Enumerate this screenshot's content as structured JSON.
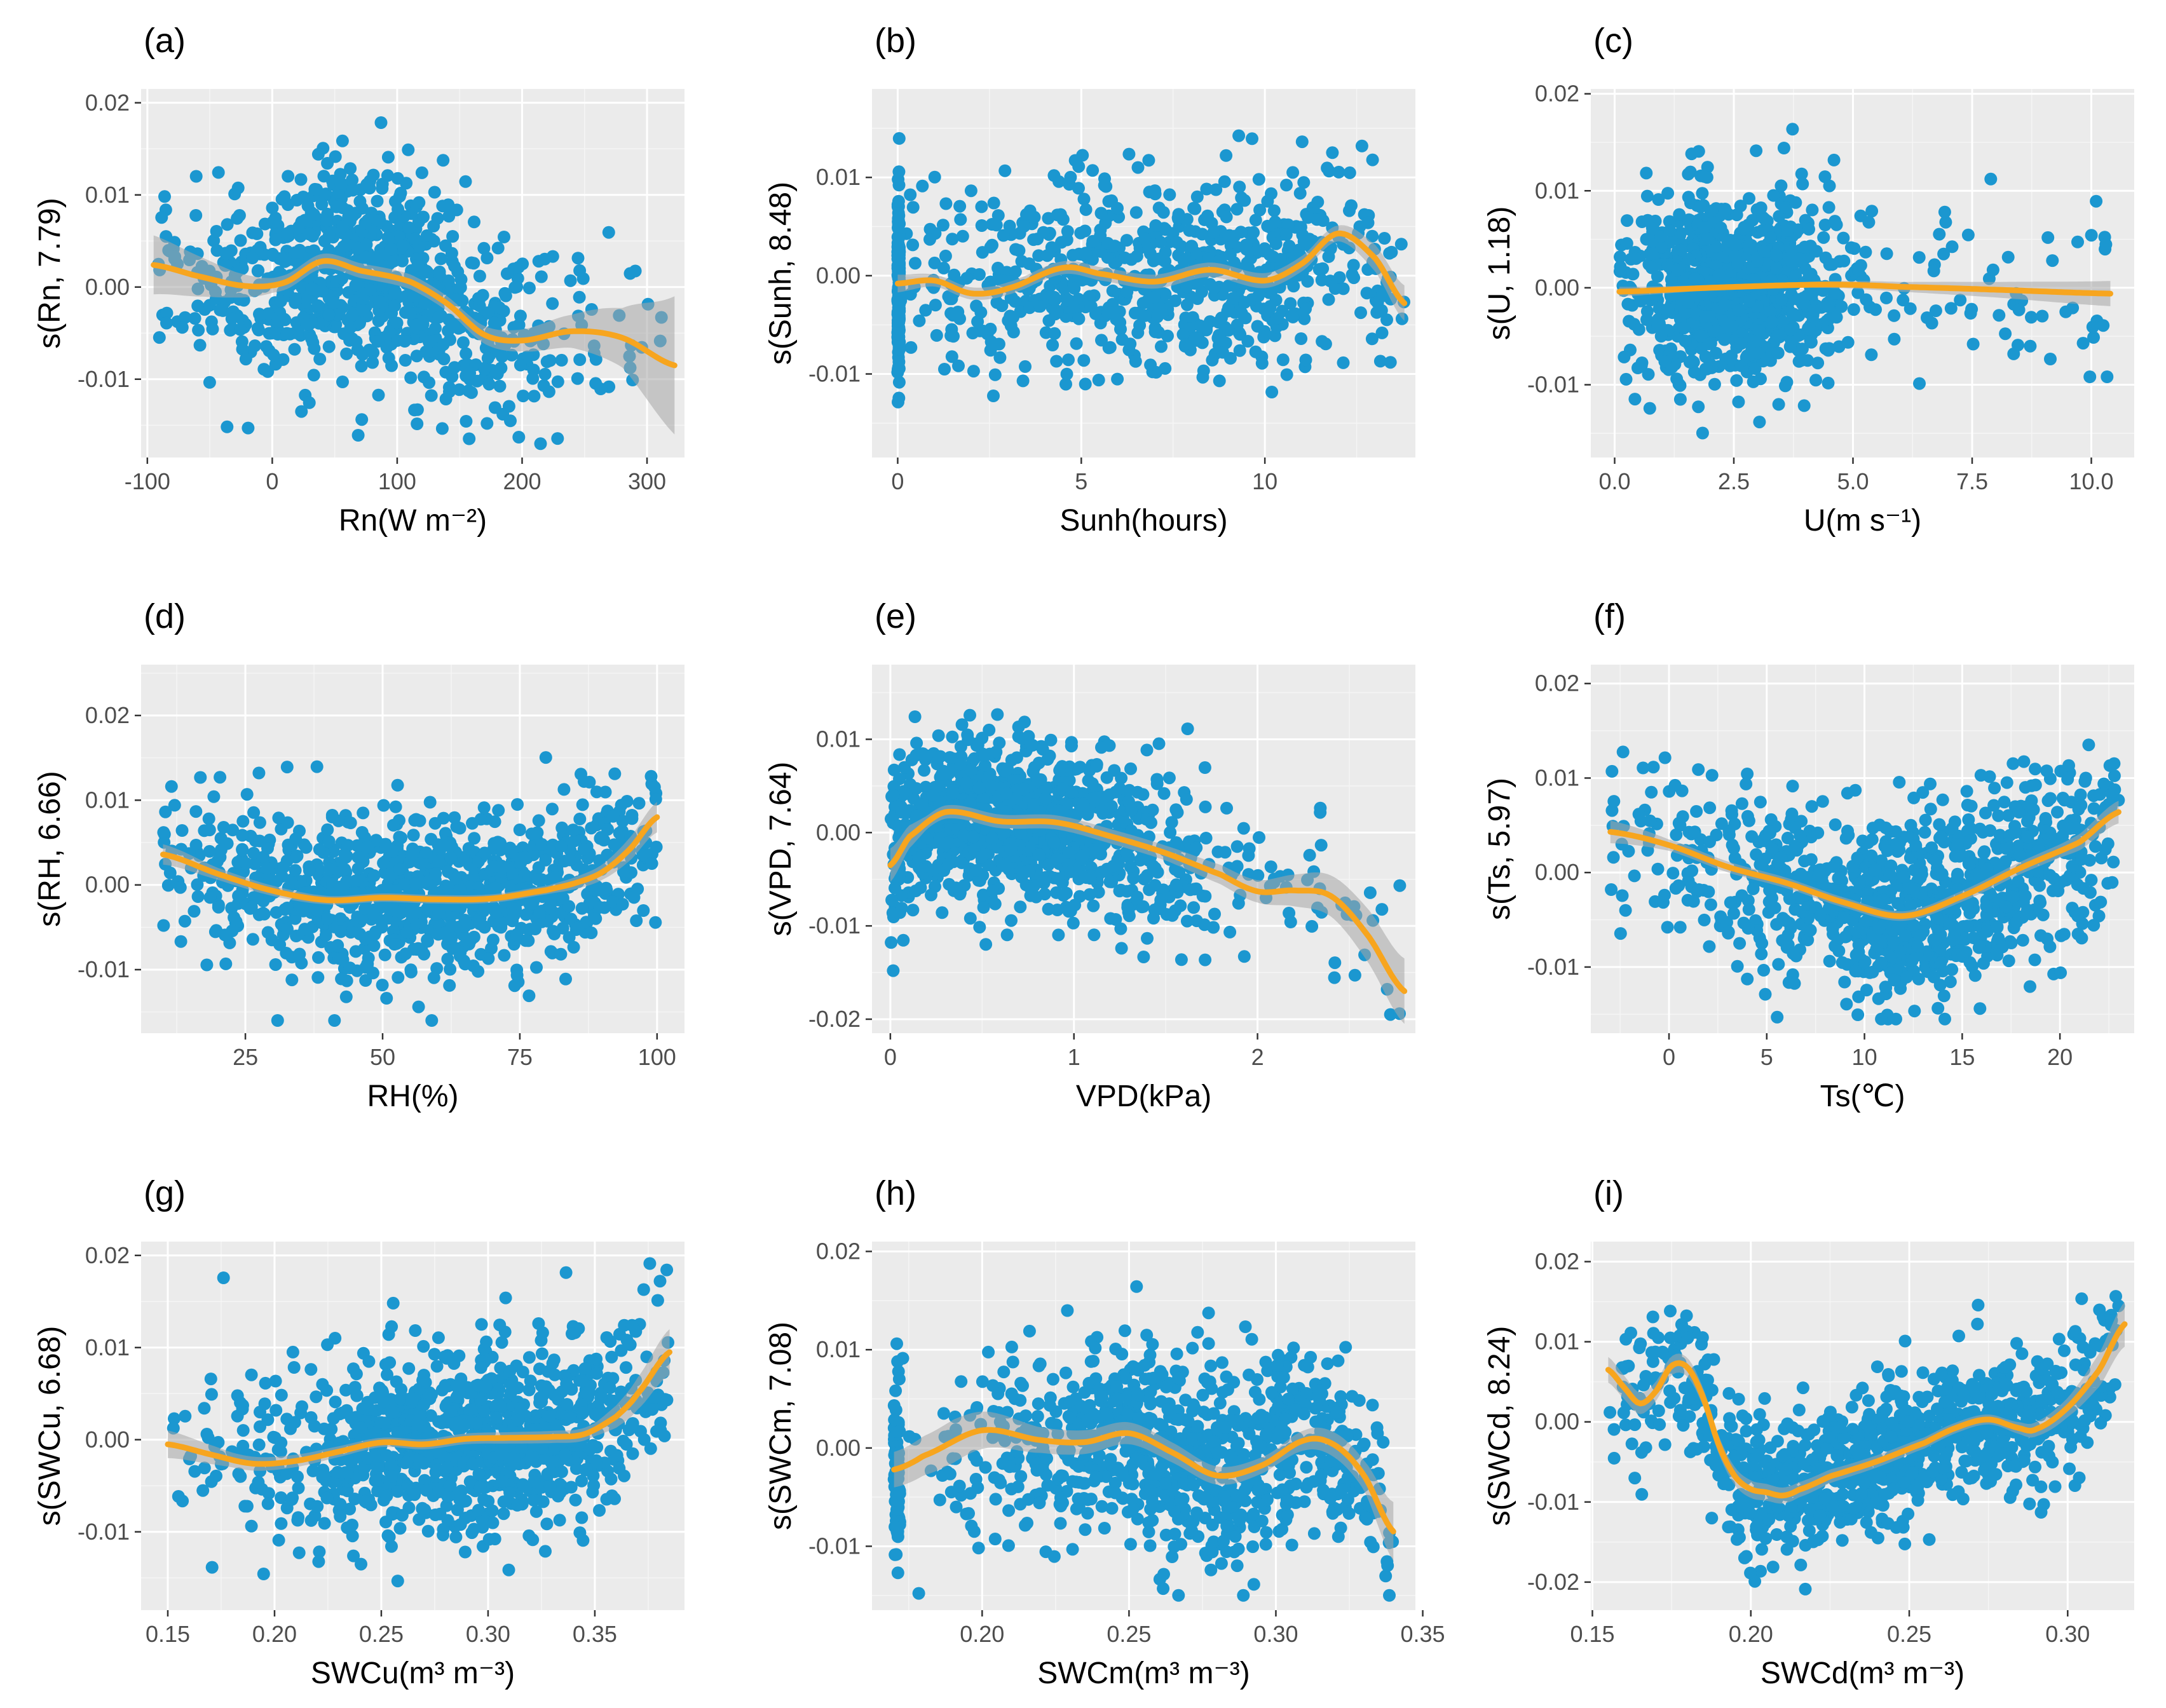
{
  "figure": {
    "colors": {
      "panel_bg": "#ebebeb",
      "points": "#1b97d0",
      "fit_line": "#f7a51e",
      "confidence_band": "#a6a6a6"
    }
  },
  "chart_data": [
    {
      "id": "a",
      "panel_label": "(a)",
      "type": "scatter",
      "xlabel": "Rn(W m⁻²)",
      "ylabel": "s(Rn, 7.79)",
      "xlim": [
        -105,
        330
      ],
      "ylim": [
        -0.0185,
        0.0215
      ],
      "xticks": [
        -100,
        0,
        100,
        200,
        300
      ],
      "xtick_labels": [
        "-100",
        "0",
        "100",
        "200",
        "300"
      ],
      "yticks": [
        -0.01,
        0,
        0.01,
        0.02
      ],
      "ytick_labels": [
        "-0.01",
        "0.00",
        "0.01",
        "0.02"
      ],
      "x_range": [
        -95,
        322
      ],
      "x_mean": 80,
      "x_sd": 70,
      "n_points": 900,
      "noise_sd": 0.0053,
      "y_extent": [
        -0.017,
        0.0205
      ],
      "fit": {
        "x": [
          -95,
          -60,
          -20,
          10,
          40,
          70,
          110,
          140,
          170,
          200,
          240,
          280,
          322
        ],
        "y": [
          0.0024,
          0.0012,
          0.0001,
          0.0005,
          0.0028,
          0.0018,
          0.0006,
          -0.0018,
          -0.0052,
          -0.0058,
          -0.0048,
          -0.0055,
          -0.0085
        ]
      },
      "band_halfwidth": {
        "x": [
          -95,
          -30,
          0,
          150,
          200,
          240,
          280,
          322
        ],
        "h": [
          0.0032,
          0.0014,
          0.0008,
          0.0008,
          0.0012,
          0.0018,
          0.0032,
          0.0075
        ]
      }
    },
    {
      "id": "b",
      "panel_label": "(b)",
      "type": "scatter",
      "xlabel": "Sunh(hours)",
      "ylabel": "s(Sunh, 8.48)",
      "xlim": [
        -0.7,
        14.1
      ],
      "ylim": [
        -0.0185,
        0.019
      ],
      "xticks": [
        0,
        5,
        10
      ],
      "xtick_labels": [
        "0",
        "5",
        "10"
      ],
      "yticks": [
        -0.01,
        0,
        0.01
      ],
      "ytick_labels": [
        "-0.01",
        "0.00",
        "0.01"
      ],
      "x_range": [
        0,
        13.8
      ],
      "x_mean": 7,
      "x_sd": 4,
      "n_points": 900,
      "cluster_at_x0": 180,
      "noise_sd": 0.0048,
      "y_extent": [
        -0.0175,
        0.0175
      ],
      "fit": {
        "x": [
          0,
          1,
          2,
          3,
          4.5,
          5.5,
          7,
          8.5,
          10,
          11,
          12,
          13,
          13.8
        ],
        "y": [
          -0.0008,
          -0.0005,
          -0.0018,
          -0.0013,
          0.0008,
          0.0002,
          -0.0006,
          0.0006,
          -0.0005,
          0.0012,
          0.0043,
          0.0018,
          -0.0028
        ]
      },
      "band_halfwidth": {
        "x": [
          0,
          1,
          12,
          13.8
        ],
        "h": [
          0.0009,
          0.0006,
          0.0008,
          0.0018
        ]
      }
    },
    {
      "id": "c",
      "panel_label": "(c)",
      "type": "scatter",
      "xlabel": "U(m s⁻¹)",
      "ylabel": "s(U, 1.18)",
      "xlim": [
        -0.5,
        10.9
      ],
      "ylim": [
        -0.0175,
        0.0205
      ],
      "xticks": [
        0,
        2.5,
        5,
        7.5,
        10
      ],
      "xtick_labels": [
        "0.0",
        "2.5",
        "5.0",
        "7.5",
        "10.0"
      ],
      "yticks": [
        -0.01,
        0,
        0.01,
        0.02
      ],
      "ytick_labels": [
        "-0.01",
        "0.00",
        "0.01",
        "0.02"
      ],
      "x_range": [
        0.1,
        10.4
      ],
      "x_mean": 2.5,
      "x_sd": 1.1,
      "n_points": 1000,
      "noise_sd": 0.0048,
      "y_extent": [
        -0.016,
        0.0185
      ],
      "fit": {
        "x": [
          0.1,
          2,
          4,
          5,
          6,
          8,
          10.4
        ],
        "y": [
          -0.0004,
          0,
          0.0003,
          0.0003,
          0.0001,
          -0.0002,
          -0.0006
        ]
      },
      "band_halfwidth": {
        "x": [
          0.1,
          2,
          4,
          5,
          6,
          8,
          10.4
        ],
        "h": [
          0.0005,
          0.00025,
          0.0003,
          0.0004,
          0.0005,
          0.0008,
          0.0013
        ]
      }
    },
    {
      "id": "d",
      "panel_label": "(d)",
      "type": "scatter",
      "xlabel": "RH(%)",
      "ylabel": "s(RH, 6.66)",
      "xlim": [
        6,
        105
      ],
      "ylim": [
        -0.0175,
        0.026
      ],
      "xticks": [
        25,
        50,
        75,
        100
      ],
      "xtick_labels": [
        "25",
        "50",
        "75",
        "100"
      ],
      "yticks": [
        -0.01,
        0,
        0.01,
        0.02
      ],
      "ytick_labels": [
        "-0.01",
        "0.00",
        "0.01",
        "0.02"
      ],
      "x_range": [
        10,
        100
      ],
      "x_mean": 60,
      "x_sd": 24,
      "n_points": 1000,
      "noise_sd": 0.0048,
      "y_extent": [
        -0.016,
        0.025
      ],
      "fit": {
        "x": [
          10,
          20,
          30,
          40,
          50,
          60,
          70,
          80,
          85,
          90,
          95,
          100
        ],
        "y": [
          0.0036,
          0.0013,
          -0.0007,
          -0.0018,
          -0.0015,
          -0.0017,
          -0.0016,
          -0.0006,
          0.0002,
          0.0015,
          0.0042,
          0.008
        ]
      },
      "band_halfwidth": {
        "x": [
          10,
          20,
          40,
          80,
          90,
          100
        ],
        "h": [
          0.0012,
          0.0007,
          0.0005,
          0.0005,
          0.0009,
          0.0018
        ]
      }
    },
    {
      "id": "e",
      "panel_label": "(e)",
      "type": "scatter",
      "xlabel": "VPD(kPa)",
      "ylabel": "s(VPD, 7.64)",
      "xlim": [
        -0.1,
        2.86
      ],
      "ylim": [
        -0.0215,
        0.018
      ],
      "xticks": [
        0,
        1,
        2
      ],
      "xtick_labels": [
        "0",
        "1",
        "2"
      ],
      "yticks": [
        -0.02,
        -0.01,
        0,
        0.01
      ],
      "ytick_labels": [
        "-0.02",
        "-0.01",
        "0.00",
        "0.01"
      ],
      "x_range": [
        0,
        2.8
      ],
      "x_mean": 0.6,
      "x_sd": 0.55,
      "n_points": 1000,
      "noise_sd": 0.0045,
      "y_extent": [
        -0.0195,
        0.017
      ],
      "fit": {
        "x": [
          0,
          0.1,
          0.3,
          0.6,
          0.9,
          1.2,
          1.5,
          1.8,
          2.0,
          2.2,
          2.4,
          2.6,
          2.8
        ],
        "y": [
          -0.0035,
          -0.0005,
          0.0022,
          0.0012,
          0.0011,
          -0.0004,
          -0.0022,
          -0.0045,
          -0.0063,
          -0.0062,
          -0.0068,
          -0.011,
          -0.017
        ]
      },
      "band_halfwidth": {
        "x": [
          0,
          0.2,
          1.5,
          2.0,
          2.4,
          2.8
        ],
        "h": [
          0.0018,
          0.0007,
          0.0008,
          0.0012,
          0.0022,
          0.0035
        ]
      }
    },
    {
      "id": "f",
      "panel_label": "(f)",
      "type": "scatter",
      "xlabel": "Ts(℃)",
      "ylabel": "s(Ts, 5.97)",
      "xlim": [
        -4,
        23.8
      ],
      "ylim": [
        -0.017,
        0.022
      ],
      "xticks": [
        0,
        5,
        10,
        15,
        20
      ],
      "xtick_labels": [
        "0",
        "5",
        "10",
        "15",
        "20"
      ],
      "yticks": [
        -0.01,
        0,
        0.01,
        0.02
      ],
      "ytick_labels": [
        "-0.01",
        "0.00",
        "0.01",
        "0.02"
      ],
      "x_range": [
        -3,
        23
      ],
      "x_mean": 13,
      "x_sd": 6.5,
      "n_points": 1000,
      "noise_sd": 0.0048,
      "y_extent": [
        -0.0155,
        0.021
      ],
      "fit": {
        "x": [
          -3,
          0,
          3,
          6,
          9,
          12,
          15,
          18,
          21,
          23
        ],
        "y": [
          0.0043,
          0.0029,
          0.0006,
          -0.0011,
          -0.0032,
          -0.0046,
          -0.0025,
          0.0005,
          0.0032,
          0.0064
        ]
      },
      "band_halfwidth": {
        "x": [
          -3,
          0,
          12,
          20,
          23
        ],
        "h": [
          0.0012,
          0.0006,
          0.0005,
          0.0007,
          0.0012
        ]
      }
    },
    {
      "id": "g",
      "panel_label": "(g)",
      "type": "scatter",
      "xlabel": "SWCu(m³ m⁻³)",
      "ylabel": "s(SWCu, 6.68)",
      "xlim": [
        0.1375,
        0.392
      ],
      "ylim": [
        -0.0185,
        0.0215
      ],
      "xticks": [
        0.15,
        0.2,
        0.25,
        0.3,
        0.35
      ],
      "xtick_labels": [
        "0.15",
        "0.20",
        "0.25",
        "0.30",
        "0.35"
      ],
      "yticks": [
        -0.01,
        0,
        0.01,
        0.02
      ],
      "ytick_labels": [
        "-0.01",
        "0.00",
        "0.01",
        "0.02"
      ],
      "x_range": [
        0.15,
        0.385
      ],
      "x_mean": 0.29,
      "x_sd": 0.05,
      "n_points": 1000,
      "noise_sd": 0.0048,
      "y_extent": [
        -0.017,
        0.0205
      ],
      "fit": {
        "x": [
          0.15,
          0.17,
          0.19,
          0.21,
          0.23,
          0.25,
          0.27,
          0.29,
          0.31,
          0.33,
          0.345,
          0.36,
          0.37,
          0.385
        ],
        "y": [
          -0.0005,
          -0.0016,
          -0.0026,
          -0.0023,
          -0.0013,
          -0.0003,
          -0.0005,
          0.0001,
          0.0002,
          0.0003,
          0.0006,
          0.0025,
          0.005,
          0.0095
        ]
      },
      "band_halfwidth": {
        "x": [
          0.15,
          0.18,
          0.25,
          0.35,
          0.385
        ],
        "h": [
          0.0015,
          0.0008,
          0.0005,
          0.0007,
          0.0025
        ]
      }
    },
    {
      "id": "h",
      "panel_label": "(h)",
      "type": "scatter",
      "xlabel": "SWCm(m³ m⁻³)",
      "ylabel": "s(SWCm, 7.08)",
      "xlim": [
        0.1625,
        0.3475
      ],
      "ylim": [
        -0.0165,
        0.021
      ],
      "xticks": [
        0.2,
        0.25,
        0.3,
        0.35
      ],
      "xtick_labels": [
        "0.20",
        "0.25",
        "0.30",
        "0.35"
      ],
      "yticks": [
        -0.01,
        0,
        0.01,
        0.02
      ],
      "ytick_labels": [
        "-0.01",
        "0.00",
        "0.01",
        "0.02"
      ],
      "x_range": [
        0.17,
        0.34
      ],
      "x_mean": 0.27,
      "x_sd": 0.04,
      "n_points": 1000,
      "cluster_at_x": 0.171,
      "cluster_n": 80,
      "noise_sd": 0.005,
      "y_extent": [
        -0.015,
        0.0195
      ],
      "fit": {
        "x": [
          0.17,
          0.18,
          0.2,
          0.22,
          0.235,
          0.25,
          0.265,
          0.28,
          0.295,
          0.31,
          0.32,
          0.33,
          0.34
        ],
        "y": [
          -0.0022,
          -0.0008,
          0.0018,
          0.0008,
          0.0006,
          0.0015,
          -0.0005,
          -0.0028,
          -0.0018,
          0.0008,
          0.0003,
          -0.0028,
          -0.0085
        ]
      },
      "band_halfwidth": {
        "x": [
          0.17,
          0.19,
          0.22,
          0.3,
          0.33,
          0.34
        ],
        "h": [
          0.0018,
          0.0022,
          0.0013,
          0.0008,
          0.0015,
          0.003
        ]
      }
    },
    {
      "id": "i",
      "panel_label": "(i)",
      "type": "scatter",
      "xlabel": "SWCd(m³ m⁻³)",
      "ylabel": "s(SWCd, 8.24)",
      "xlim": [
        0.1495,
        0.321
      ],
      "ylim": [
        -0.0235,
        0.0225
      ],
      "xticks": [
        0.15,
        0.2,
        0.25,
        0.3
      ],
      "xtick_labels": [
        "0.15",
        "0.20",
        "0.25",
        "0.30"
      ],
      "yticks": [
        -0.02,
        -0.01,
        0,
        0.01,
        0.02
      ],
      "ytick_labels": [
        "-0.02",
        "-0.01",
        "0.00",
        "0.01",
        "0.02"
      ],
      "x_range": [
        0.155,
        0.318
      ],
      "x_mean": 0.24,
      "x_sd": 0.045,
      "n_points": 1000,
      "noise_sd": 0.0045,
      "y_extent": [
        -0.0215,
        0.0212
      ],
      "fit": {
        "x": [
          0.155,
          0.16,
          0.165,
          0.17,
          0.175,
          0.18,
          0.185,
          0.19,
          0.195,
          0.2,
          0.205,
          0.21,
          0.215,
          0.225,
          0.24,
          0.255,
          0.265,
          0.275,
          0.285,
          0.29,
          0.3,
          0.31,
          0.318
        ],
        "y": [
          0.0065,
          0.0043,
          0.0023,
          0.0038,
          0.007,
          0.0068,
          0.003,
          -0.003,
          -0.0068,
          -0.0084,
          -0.0088,
          -0.0092,
          -0.0085,
          -0.0068,
          -0.0049,
          -0.0026,
          -0.0007,
          0.0003,
          -0.0008,
          -0.0009,
          0.0018,
          0.0065,
          0.0122
        ]
      },
      "band_halfwidth": {
        "x": [
          0.155,
          0.17,
          0.2,
          0.23,
          0.28,
          0.3,
          0.318
        ],
        "h": [
          0.0016,
          0.0012,
          0.0011,
          0.0008,
          0.0006,
          0.0012,
          0.0028
        ]
      }
    }
  ]
}
